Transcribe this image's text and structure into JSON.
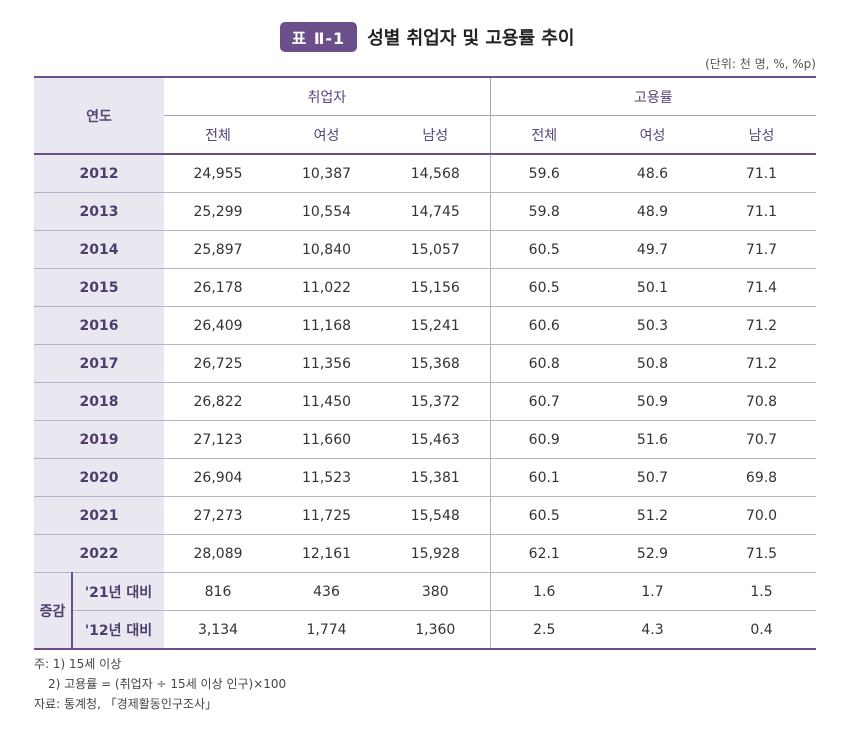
{
  "title_badge": "표 Ⅱ-1",
  "title": "성별 취업자 및 고용률 추이",
  "unit": "(단위: 천 명, %, %p)",
  "headers": {
    "year": "연도",
    "group1": "취업자",
    "group2": "고용률",
    "sub": [
      "전체",
      "여성",
      "남성",
      "전체",
      "여성",
      "남성"
    ]
  },
  "rows": [
    {
      "year": "2012",
      "values": [
        "24,955",
        "10,387",
        "14,568",
        "59.6",
        "48.6",
        "71.1"
      ]
    },
    {
      "year": "2013",
      "values": [
        "25,299",
        "10,554",
        "14,745",
        "59.8",
        "48.9",
        "71.1"
      ]
    },
    {
      "year": "2014",
      "values": [
        "25,897",
        "10,840",
        "15,057",
        "60.5",
        "49.7",
        "71.7"
      ]
    },
    {
      "year": "2015",
      "values": [
        "26,178",
        "11,022",
        "15,156",
        "60.5",
        "50.1",
        "71.4"
      ]
    },
    {
      "year": "2016",
      "values": [
        "26,409",
        "11,168",
        "15,241",
        "60.6",
        "50.3",
        "71.2"
      ]
    },
    {
      "year": "2017",
      "values": [
        "26,725",
        "11,356",
        "15,368",
        "60.8",
        "50.8",
        "71.2"
      ]
    },
    {
      "year": "2018",
      "values": [
        "26,822",
        "11,450",
        "15,372",
        "60.7",
        "50.9",
        "70.8"
      ]
    },
    {
      "year": "2019",
      "values": [
        "27,123",
        "11,660",
        "15,463",
        "60.9",
        "51.6",
        "70.7"
      ]
    },
    {
      "year": "2020",
      "values": [
        "26,904",
        "11,523",
        "15,381",
        "60.1",
        "50.7",
        "69.8"
      ]
    },
    {
      "year": "2021",
      "values": [
        "27,273",
        "11,725",
        "15,548",
        "60.5",
        "51.2",
        "70.0"
      ]
    },
    {
      "year": "2022",
      "values": [
        "28,089",
        "12,161",
        "15,928",
        "62.1",
        "52.9",
        "71.5"
      ]
    }
  ],
  "diff": {
    "group_label": "증감",
    "rows": [
      {
        "label": "'21년 대비",
        "values": [
          "816",
          "436",
          "380",
          "1.6",
          "1.7",
          "1.5"
        ]
      },
      {
        "label": "'12년 대비",
        "values": [
          "3,134",
          "1,774",
          "1,360",
          "2.5",
          "4.3",
          "0.4"
        ]
      }
    ]
  },
  "notes": {
    "note1": "주: 1) 15세 이상",
    "note2": "2) 고용률 = (취업자 ÷ 15세 이상 인구)×100",
    "source": "자료: 통계청, 「경제활동인구조사」"
  }
}
